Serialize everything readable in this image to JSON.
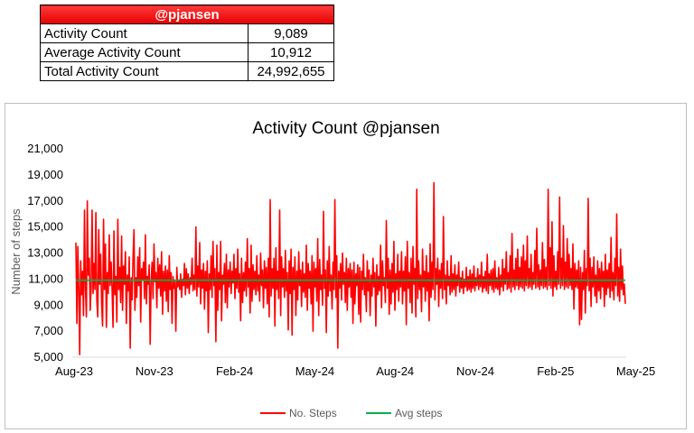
{
  "summary": {
    "header": "@pjansen",
    "rows": [
      {
        "label": "Activity Count",
        "value": "9,089"
      },
      {
        "label": "Average Activity Count",
        "value": "10,912"
      },
      {
        "label": "Total Activity Count",
        "value": "24,992,655"
      }
    ]
  },
  "chart_data": {
    "type": "line",
    "title": "Activity Count @pjansen",
    "ylabel": "Number of steps",
    "xlabel": "",
    "ylim": [
      5000,
      21000
    ],
    "yticks": [
      "5,000",
      "7,000",
      "9,000",
      "11,000",
      "13,000",
      "15,000",
      "17,000",
      "19,000",
      "21,000"
    ],
    "xticks": [
      "Aug-23",
      "Nov-23",
      "Feb-24",
      "May-24",
      "Aug-24",
      "Nov-24",
      "Feb-25",
      "May-25"
    ],
    "legend_position": "bottom",
    "grid": false,
    "series": [
      {
        "name": "No. Steps",
        "color": "#ff0000",
        "values": [
          13800,
          7600,
          13500,
          10200,
          5200,
          12400,
          9800,
          11600,
          8200,
          16300,
          10400,
          8100,
          17000,
          11300,
          12600,
          8600,
          10400,
          16300,
          9900,
          12200,
          10200,
          16100,
          9300,
          8100,
          14800,
          10600,
          12900,
          9100,
          7400,
          15600,
          10200,
          13700,
          7300,
          11500,
          9900,
          14400,
          10500,
          12300,
          10300,
          7300,
          14700,
          9800,
          11200,
          7700,
          15600,
          10200,
          11900,
          9200,
          14300,
          8600,
          12000,
          10600,
          13100,
          7600,
          11300,
          10100,
          12700,
          5700,
          11100,
          9400,
          12600,
          14800,
          8600,
          11100,
          9600,
          12700,
          10500,
          13400,
          7700,
          11800,
          11000,
          12300,
          9500,
          14400,
          9100,
          11200,
          10600,
          12100,
          6000,
          10800,
          12300,
          9500,
          13700,
          10800,
          11500,
          8800,
          12600,
          10300,
          12100,
          9700,
          13100,
          8300,
          11600,
          10100,
          12000,
          9300,
          11700,
          8500,
          12800,
          10200,
          11500,
          7600,
          11200,
          10300,
          10800,
          7000,
          11900,
          10400,
          10900,
          10200,
          11400,
          9600,
          11000,
          10500,
          12200,
          9800,
          11800,
          10300,
          11400,
          9900,
          11100,
          10600,
          12600,
          10100,
          11300,
          10200,
          15000,
          9700,
          12000,
          10400,
          13800,
          9100,
          11700,
          10300,
          12200,
          8700,
          11600,
          10100,
          12400,
          6900,
          11400,
          10200,
          12800,
          9600,
          13900,
          10500,
          11800,
          6200,
          13600,
          8600,
          11500,
          10200,
          13900,
          7800,
          11300,
          10600,
          12200,
          9200,
          12900,
          8800,
          11700,
          10400,
          12300,
          9900,
          11600,
          10700,
          12900,
          9500,
          11800,
          10300,
          13300,
          10000,
          11400,
          7800,
          12600,
          9200,
          11500,
          10100,
          12300,
          9700,
          14100,
          10400,
          11800,
          8400,
          13600,
          9300,
          12100,
          10200,
          11600,
          9800,
          12800,
          10100,
          11300,
          9300,
          13000,
          10500,
          11700,
          8800,
          12400,
          10300,
          11900,
          9100,
          12600,
          8100,
          17100,
          9700,
          11800,
          10300,
          12600,
          7400,
          13400,
          10200,
          11600,
          9500,
          16300,
          8200,
          12700,
          10400,
          11800,
          9600,
          13200,
          10100,
          11500,
          7100,
          12400,
          9900,
          13300,
          6700,
          11900,
          10200,
          12700,
          8200,
          11600,
          9400,
          13100,
          10500,
          11700,
          8900,
          12300,
          10000,
          11400,
          9600,
          13600,
          8600,
          12200,
          10300,
          11600,
          9100,
          12800,
          7000,
          12300,
          10400,
          11800,
          9300,
          14100,
          8200,
          12500,
          10200,
          11300,
          9000,
          16200,
          10300,
          11700,
          6900,
          12400,
          9700,
          13500,
          10100,
          11300,
          8700,
          12300,
          10200,
          17100,
          9600,
          12800,
          5700,
          11600,
          10300,
          12200,
          9400,
          13000,
          10600,
          11500,
          9200,
          12600,
          8600,
          11800,
          10400,
          12200,
          9600,
          11700,
          7600,
          12300,
          9100,
          11400,
          10500,
          12100,
          8300,
          11900,
          7700,
          11600,
          10200,
          12900,
          9800,
          11100,
          8500,
          12400,
          10100,
          11700,
          8200,
          11300,
          9700,
          12600,
          10400,
          11500,
          7400,
          12100,
          9800,
          11200,
          10100,
          13600,
          8800,
          12400,
          10500,
          11100,
          9200,
          15500,
          10300,
          12600,
          8300,
          11700,
          9100,
          12200,
          10000,
          13900,
          8600,
          11400,
          10200,
          12900,
          9300,
          11600,
          10400,
          13100,
          9100,
          11600,
          10100,
          12700,
          7500,
          13900,
          10300,
          11500,
          9200,
          12600,
          8400,
          13500,
          10600,
          11800,
          8100,
          17900,
          9500,
          12400,
          10200,
          11300,
          8500,
          13300,
          10400,
          11600,
          9300,
          12800,
          10100,
          11500,
          7800,
          13700,
          9600,
          12300,
          10200,
          18400,
          9400,
          11800,
          10600,
          12600,
          8900,
          11700,
          10300,
          12200,
          9500,
          15800,
          10200,
          11300,
          9100,
          12400,
          10500,
          11200,
          9800,
          12800,
          10000,
          11400,
          10200,
          12100,
          9700,
          11300,
          10500,
          12300,
          10000,
          11100,
          10300,
          11600,
          9900,
          11000,
          10400,
          11900,
          10100,
          11200,
          10200,
          11700,
          10000,
          11400,
          10300,
          12000,
          10100,
          11100,
          10500,
          11800,
          10200,
          11300,
          10400,
          12300,
          10000,
          11200,
          10300,
          11600,
          10100,
          12900,
          9900,
          11400,
          10500,
          11700,
          10200,
          11800,
          10000,
          12400,
          10300,
          11100,
          10200,
          11900,
          9800,
          11300,
          10400,
          12500,
          10100,
          11800,
          10600,
          13100,
          10200,
          11500,
          10300,
          12800,
          10000,
          14500,
          10400,
          11700,
          10200,
          12600,
          10500,
          13300,
          10200,
          11900,
          10400,
          12700,
          10300,
          13600,
          10100,
          12400,
          10500,
          14300,
          10300,
          11800,
          10400,
          12900,
          10200,
          11500,
          10600,
          13200,
          10300,
          14900,
          10400,
          12100,
          10200,
          11700,
          10500,
          13800,
          10300,
          12500,
          10400,
          11900,
          10200,
          17900,
          10500,
          13400,
          10300,
          15400,
          9700,
          12800,
          10400,
          11600,
          10200,
          13100,
          10600,
          17300,
          10300,
          12600,
          10500,
          15100,
          10200,
          12300,
          10400,
          14100,
          10300,
          12900,
          10500,
          11800,
          10200,
          13700,
          8700,
          12200,
          10400,
          11700,
          10300,
          12400,
          7500,
          11900,
          7900,
          11500,
          10200,
          13200,
          8400,
          11800,
          10500,
          17200,
          10100,
          12600,
          8900,
          11900,
          10400,
          12700,
          9700,
          11300,
          9200,
          12400,
          10100,
          11800,
          9500,
          12300,
          10400,
          11600,
          8900,
          12900,
          9800,
          11700,
          10300,
          12200,
          9600,
          14200,
          10100,
          11500,
          9400,
          12600,
          10500,
          16000,
          9700,
          11900,
          9300,
          13300,
          10200,
          12000,
          9800,
          10600,
          9100
        ]
      },
      {
        "name": "Avg steps",
        "color": "#00b050",
        "values": [
          10912
        ]
      }
    ]
  }
}
